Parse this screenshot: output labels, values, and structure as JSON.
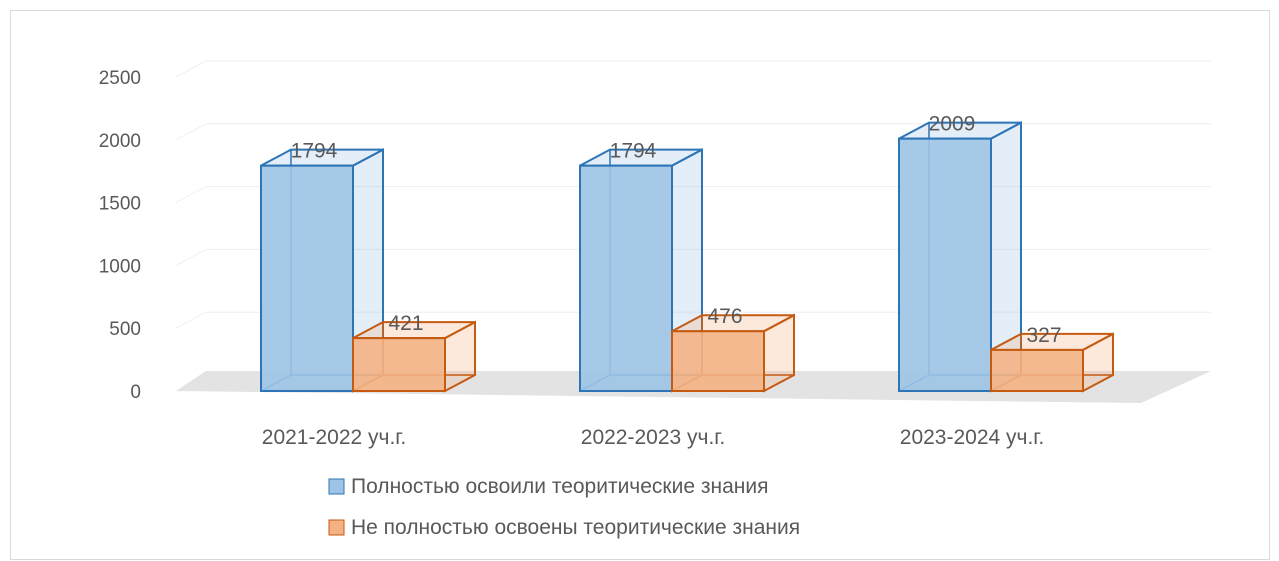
{
  "chart_data": {
    "type": "bar",
    "style": "3d-clustered-column",
    "categories": [
      "2021-2022 уч.г.",
      "2022-2023 уч.г.",
      "2023-2024 уч.г."
    ],
    "series": [
      {
        "name": "Полностью освоили теоритические знания",
        "values": [
          1794,
          1794,
          2009
        ],
        "color": "#9dc3e6",
        "border": "#2e75b6"
      },
      {
        "name": "Не полностью освоены теоритические знания",
        "values": [
          421,
          476,
          327
        ],
        "color": "#f4b183",
        "border": "#c55a11"
      }
    ],
    "ylim": [
      0,
      2500
    ],
    "yticks": [
      "0",
      "500",
      "1000",
      "1500",
      "2000",
      "2500"
    ],
    "grid": true,
    "legend_position": "bottom"
  }
}
